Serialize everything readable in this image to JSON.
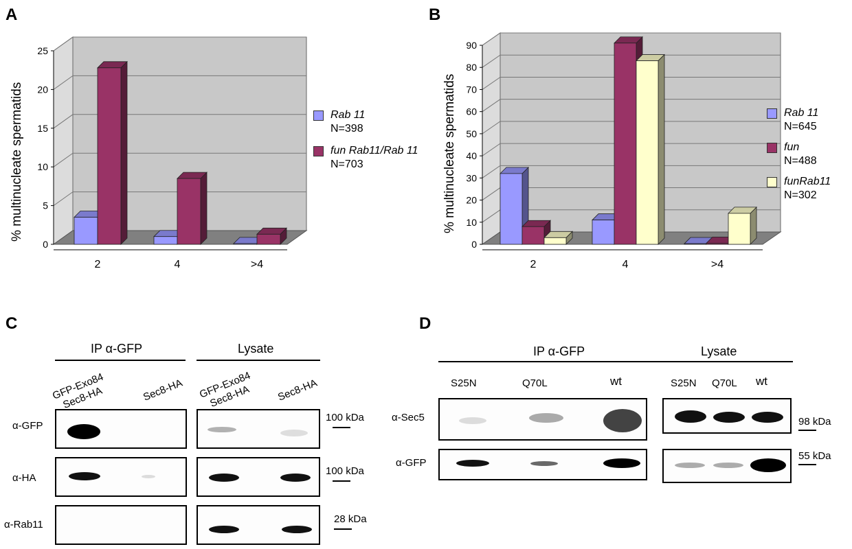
{
  "panels": {
    "A": "A",
    "B": "B",
    "C": "C",
    "D": "D"
  },
  "colors": {
    "blue": "#9999ff",
    "maroon": "#993366",
    "cream": "#ffffcc"
  },
  "chart_data": [
    {
      "type": "bar",
      "panel": "A",
      "ylabel": "% multinucleate spermatids",
      "categories": [
        "2",
        "4",
        ">4"
      ],
      "ylim": [
        0,
        25
      ],
      "yticks": [
        "0",
        "5",
        "10",
        "15",
        "20",
        "25"
      ],
      "series": [
        {
          "name": "Rab 11",
          "n": "N=398",
          "values": [
            3.5,
            1.0,
            0.1
          ]
        },
        {
          "name": "fun Rab11/Rab 11",
          "n": "N=703",
          "values": [
            22.8,
            8.5,
            1.3
          ]
        }
      ],
      "legend": "right",
      "grid": true
    },
    {
      "type": "bar",
      "panel": "B",
      "ylabel": "% multinucleate spermatids",
      "categories": [
        "2",
        "4",
        ">4"
      ],
      "ylim": [
        0,
        90
      ],
      "yticks": [
        "0",
        "10",
        "20",
        "30",
        "40",
        "50",
        "60",
        "70",
        "80",
        "90"
      ],
      "series": [
        {
          "name": "Rab 11",
          "n": "N=645",
          "values": [
            32,
            11,
            0.3
          ]
        },
        {
          "name": "fun",
          "n": "N=488",
          "values": [
            8,
            91,
            0.5
          ]
        },
        {
          "name": "funRab11",
          "n": "N=302",
          "values": [
            3,
            83,
            14
          ]
        }
      ],
      "legend": "right",
      "grid": true
    }
  ],
  "blot_c": {
    "headers": {
      "ip": "IP α-GFP",
      "lysate": "Lysate"
    },
    "lanes": {
      "ip_1": "GFP-Exo84\nSec8-HA",
      "ip_2": "Sec8-HA",
      "ly_1": "GFP-Exo84\nSec8-HA",
      "ly_2": "Sec8-HA"
    },
    "rows": [
      {
        "label": "α-GFP",
        "marker": "100",
        "unit": "kDa"
      },
      {
        "label": "α-HA",
        "marker": "100",
        "unit": "kDa"
      },
      {
        "label": "α-Rab11",
        "marker": "28",
        "unit": "kDa"
      }
    ]
  },
  "blot_d": {
    "headers": {
      "ip": "IP α-GFP",
      "lysate": "Lysate"
    },
    "lanes": [
      "S25N",
      "Q70L",
      "wt"
    ],
    "rows": [
      {
        "label": "α-Sec5",
        "marker": "98 kDa"
      },
      {
        "label": "α-GFP",
        "marker": "55 kDa"
      }
    ]
  }
}
